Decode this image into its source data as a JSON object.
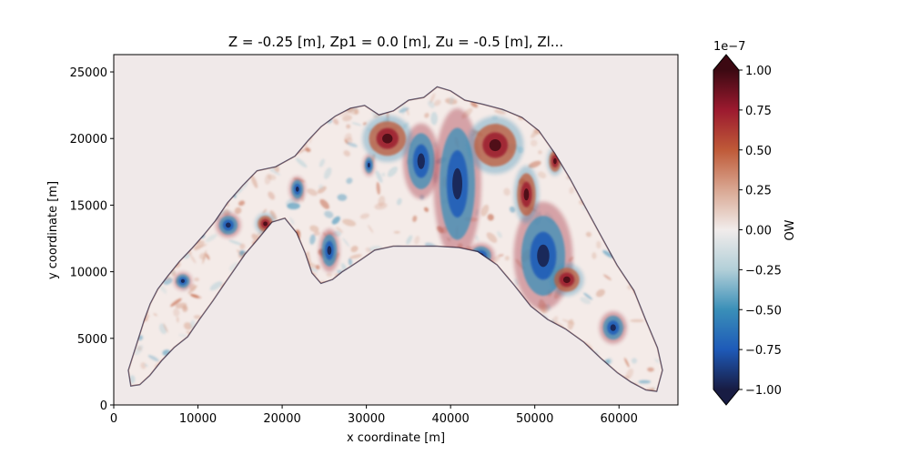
{
  "chart_data": {
    "type": "heatmap",
    "title": "Z = -0.25 [m], Zp1 = 0.0 [m], Zu = -0.5 [m], Zl...",
    "xlabel": "x coordinate [m]",
    "ylabel": "y coordinate [m]",
    "xlim": [
      0,
      67000
    ],
    "ylim": [
      0,
      26300
    ],
    "xticks": [
      0,
      10000,
      20000,
      30000,
      40000,
      50000,
      60000
    ],
    "xtick_labels": [
      "0",
      "10000",
      "20000",
      "30000",
      "40000",
      "50000",
      "60000"
    ],
    "yticks": [
      0,
      5000,
      10000,
      15000,
      20000,
      25000
    ],
    "ytick_labels": [
      "0",
      "5000",
      "10000",
      "15000",
      "20000",
      "25000"
    ],
    "colorbar": {
      "label": "OW",
      "scale_label": "1e−7",
      "vmin": -1.0,
      "vmax": 1.0,
      "extend": "both",
      "ticks": [
        1.0,
        0.75,
        0.5,
        0.25,
        0.0,
        -0.25,
        -0.5,
        -0.75,
        -1.0
      ],
      "tick_labels": [
        "1.00",
        "0.75",
        "0.50",
        "0.25",
        "0.00",
        "−0.25",
        "−0.50",
        "−0.75",
        "−1.00"
      ],
      "colormap": "balance",
      "colors": [
        "#181c43",
        "#1e5ab8",
        "#3a8fb8",
        "#b2cfd8",
        "#f1eceb",
        "#d9a792",
        "#bf5a38",
        "#9c1a2f",
        "#3c0912"
      ]
    },
    "background_color": "#f0e9e9",
    "domain_outline": [
      [
        2000,
        1400
      ],
      [
        1700,
        2600
      ],
      [
        2400,
        4000
      ],
      [
        3000,
        5200
      ],
      [
        3600,
        6400
      ],
      [
        4300,
        7600
      ],
      [
        5200,
        8700
      ],
      [
        6400,
        9700
      ],
      [
        7800,
        10800
      ],
      [
        9300,
        11800
      ],
      [
        10700,
        12800
      ],
      [
        12000,
        13800
      ],
      [
        13500,
        15200
      ],
      [
        15300,
        16500
      ],
      [
        17000,
        17600
      ],
      [
        19200,
        17900
      ],
      [
        21500,
        18700
      ],
      [
        23100,
        19900
      ],
      [
        24600,
        20900
      ],
      [
        26300,
        21700
      ],
      [
        28100,
        22300
      ],
      [
        29800,
        22500
      ],
      [
        31500,
        21800
      ],
      [
        33200,
        22100
      ],
      [
        35000,
        22900
      ],
      [
        36800,
        23100
      ],
      [
        38400,
        23900
      ],
      [
        40000,
        23600
      ],
      [
        41700,
        22900
      ],
      [
        43800,
        22600
      ],
      [
        46200,
        22200
      ],
      [
        48500,
        21600
      ],
      [
        50500,
        20600
      ],
      [
        52400,
        18900
      ],
      [
        54200,
        17000
      ],
      [
        56000,
        14900
      ],
      [
        57800,
        12800
      ],
      [
        59800,
        10500
      ],
      [
        61800,
        8600
      ],
      [
        63200,
        6400
      ],
      [
        64600,
        4300
      ],
      [
        65200,
        2600
      ],
      [
        64500,
        1000
      ],
      [
        63200,
        1100
      ],
      [
        61400,
        1700
      ],
      [
        59800,
        2400
      ],
      [
        57800,
        3500
      ],
      [
        55800,
        4700
      ],
      [
        53600,
        5700
      ],
      [
        51500,
        6400
      ],
      [
        49500,
        7400
      ],
      [
        47500,
        9000
      ],
      [
        45500,
        10500
      ],
      [
        43200,
        11500
      ],
      [
        41000,
        11800
      ],
      [
        38400,
        11900
      ],
      [
        35800,
        11900
      ],
      [
        33200,
        11900
      ],
      [
        31000,
        11600
      ],
      [
        29400,
        10900
      ],
      [
        28200,
        10400
      ],
      [
        27200,
        10000
      ],
      [
        26000,
        9400
      ],
      [
        24600,
        9100
      ],
      [
        23500,
        9900
      ],
      [
        22700,
        11400
      ],
      [
        21700,
        12900
      ],
      [
        20300,
        14000
      ],
      [
        18800,
        13700
      ],
      [
        17100,
        12400
      ],
      [
        15600,
        11300
      ],
      [
        14400,
        10200
      ],
      [
        13200,
        9100
      ],
      [
        11800,
        7800
      ],
      [
        10200,
        6400
      ],
      [
        8800,
        5100
      ],
      [
        7200,
        4300
      ],
      [
        5700,
        3300
      ],
      [
        4300,
        2200
      ],
      [
        3100,
        1500
      ]
    ],
    "features": [
      {
        "x": 36500,
        "y": 18300,
        "rx": 1600,
        "ry": 2100,
        "polarity": "negative"
      },
      {
        "x": 51000,
        "y": 11200,
        "rx": 2600,
        "ry": 3000,
        "polarity": "negative"
      },
      {
        "x": 40800,
        "y": 16600,
        "rx": 2100,
        "ry": 4200,
        "polarity": "negative"
      },
      {
        "x": 25600,
        "y": 11600,
        "rx": 900,
        "ry": 1200,
        "polarity": "negative"
      },
      {
        "x": 30300,
        "y": 18000,
        "rx": 500,
        "ry": 600,
        "polarity": "negative"
      },
      {
        "x": 21800,
        "y": 16200,
        "rx": 700,
        "ry": 700,
        "polarity": "negative"
      },
      {
        "x": 52400,
        "y": 18300,
        "rx": 700,
        "ry": 800,
        "polarity": "positive"
      },
      {
        "x": 49000,
        "y": 15800,
        "rx": 1100,
        "ry": 1600,
        "polarity": "positive"
      },
      {
        "x": 53800,
        "y": 9400,
        "rx": 1500,
        "ry": 900,
        "polarity": "positive"
      },
      {
        "x": 32500,
        "y": 20000,
        "rx": 2200,
        "ry": 1300,
        "polarity": "positive"
      },
      {
        "x": 45300,
        "y": 19500,
        "rx": 2500,
        "ry": 1600,
        "polarity": "positive"
      },
      {
        "x": 43600,
        "y": 11200,
        "rx": 1200,
        "ry": 700,
        "polarity": "negative"
      },
      {
        "x": 59300,
        "y": 5800,
        "rx": 1200,
        "ry": 900,
        "polarity": "negative"
      },
      {
        "x": 13600,
        "y": 13500,
        "rx": 1100,
        "ry": 700,
        "polarity": "negative"
      },
      {
        "x": 8200,
        "y": 9300,
        "rx": 800,
        "ry": 500,
        "polarity": "negative"
      },
      {
        "x": 18000,
        "y": 13600,
        "rx": 900,
        "ry": 600,
        "polarity": "positive"
      }
    ]
  }
}
